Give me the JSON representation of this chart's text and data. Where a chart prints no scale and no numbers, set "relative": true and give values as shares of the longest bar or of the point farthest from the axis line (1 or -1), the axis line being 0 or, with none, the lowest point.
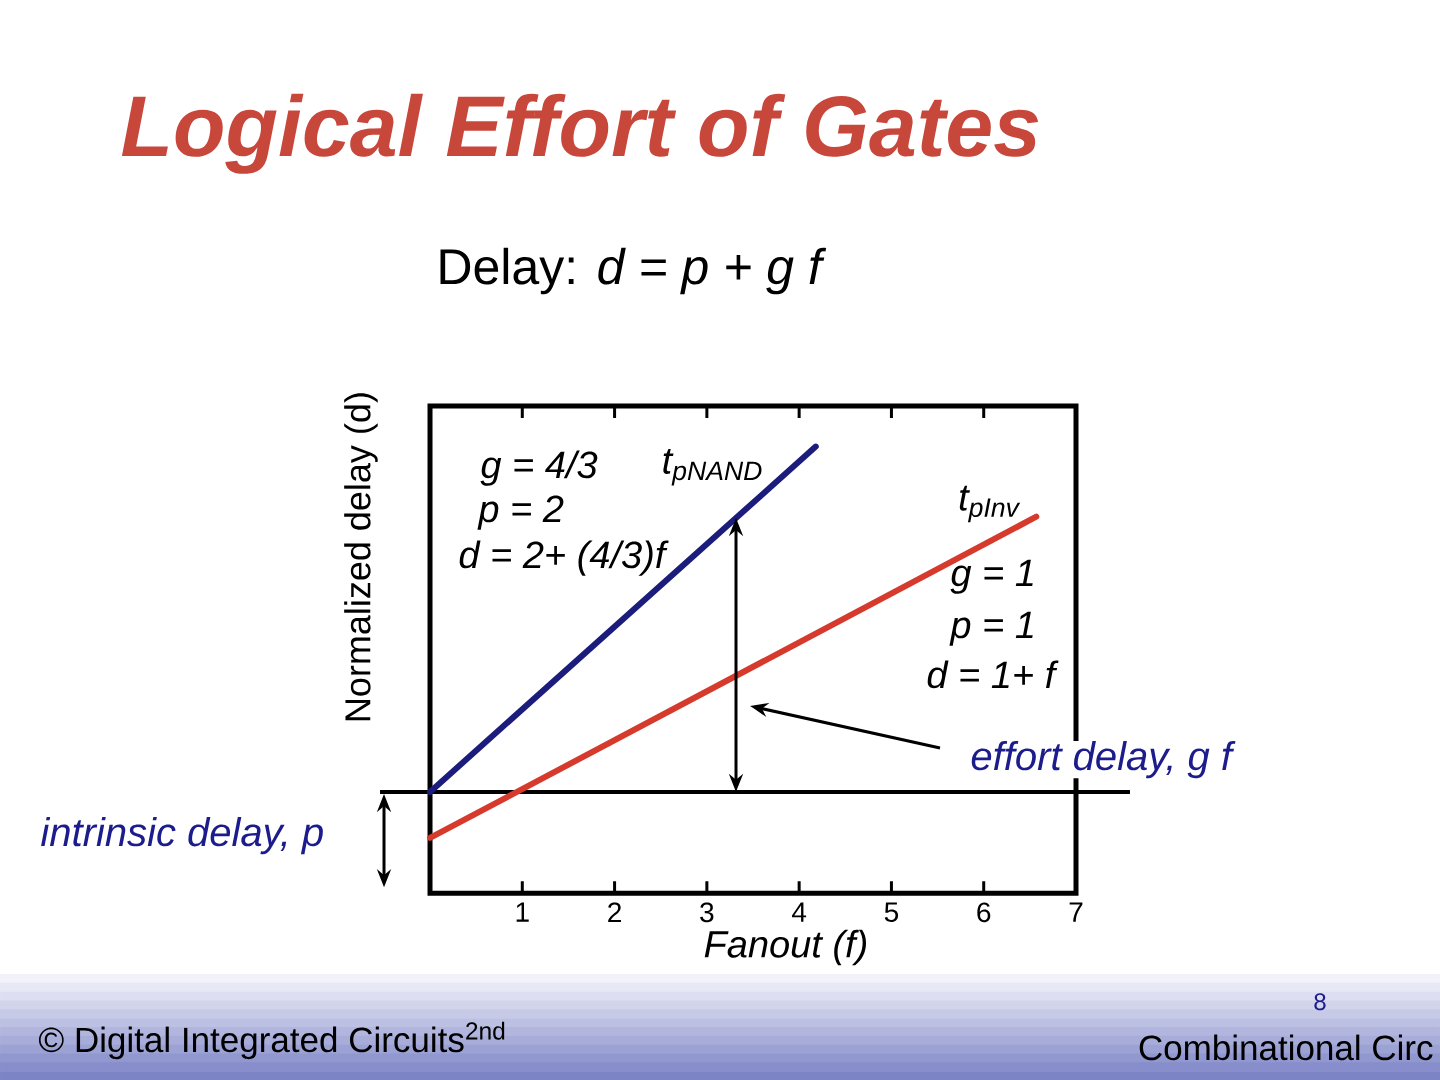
{
  "chart_data": {
    "type": "line",
    "title": "Logical Effort of Gates",
    "subtitle": "Delay:   *d = p + g f*",
    "xlabel": "Fanout (f)",
    "ylabel": "Normalized delay (d)",
    "relative": true,
    "xlim": [
      0,
      7
    ],
    "xticks": [
      1,
      2,
      3,
      4,
      5,
      6,
      7
    ],
    "series": [
      {
        "name": "t$_{pNAND}$",
        "color": "#1c1c7c",
        "x": [
          0,
          4.18
        ],
        "values": [
          0.227,
          1
        ]
      },
      {
        "name": "t$_{pInv}$",
        "color": "#d63a2c",
        "x": [
          0,
          6.57
        ],
        "values": [
          0.124,
          0.843
        ]
      }
    ],
    "ref_lines": [
      {
        "axis": "y",
        "value": 0.227,
        "color": "#000000"
      }
    ],
    "annotations": [
      "g = 4/3",
      "p = 2",
      "d = 2+ (4/3)f",
      "g = 1",
      "p = 1",
      "d = 1+ f",
      "effort delay, g f",
      "intrinsic delay, p",
      "© Digital Integrated Circuits$^{2nd}$",
      "8",
      "Combinational Circ"
    ]
  }
}
